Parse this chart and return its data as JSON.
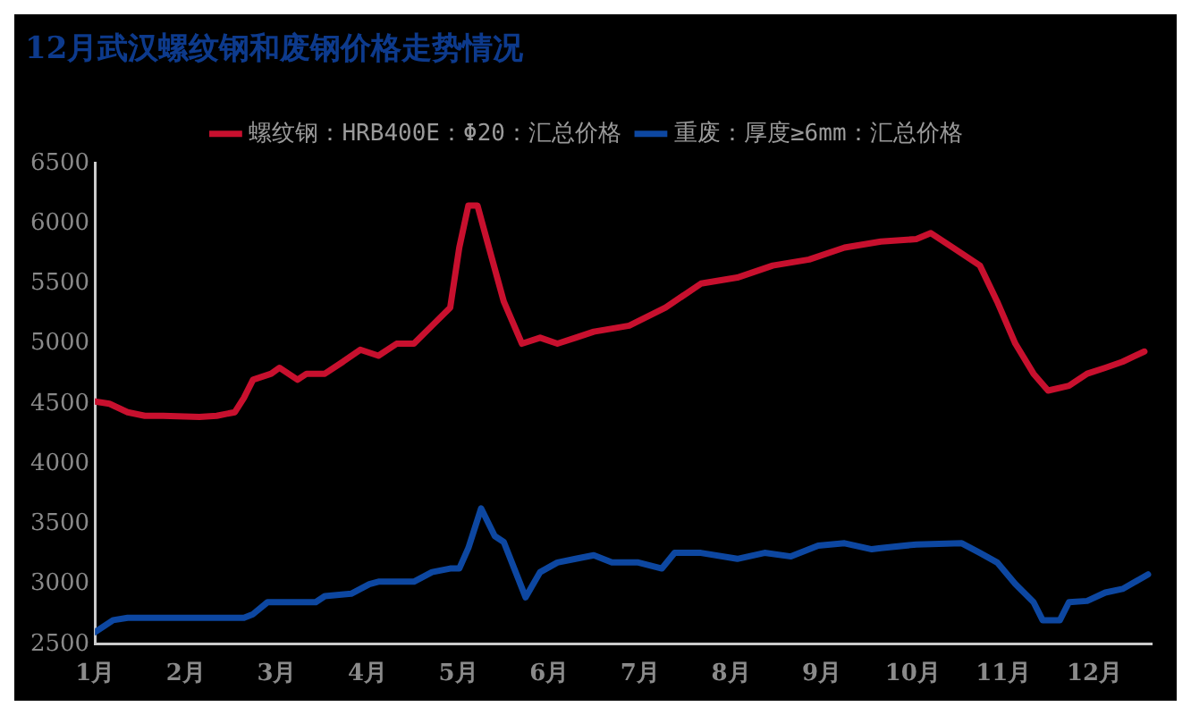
{
  "chart_data": {
    "type": "line",
    "title": "12月武汉螺纹钢和废钢价格走势情况",
    "legend": "top",
    "marker": "none",
    "line_style": "solid",
    "grid": false,
    "xlim": [
      1,
      12.63
    ],
    "xticks": [
      {
        "value": 1,
        "label": "1月"
      },
      {
        "value": 2,
        "label": "2月"
      },
      {
        "value": 3,
        "label": "3月"
      },
      {
        "value": 4,
        "label": "4月"
      },
      {
        "value": 5,
        "label": "5月"
      },
      {
        "value": 6,
        "label": "6月"
      },
      {
        "value": 7,
        "label": "7月"
      },
      {
        "value": 8,
        "label": "8月"
      },
      {
        "value": 9,
        "label": "9月"
      },
      {
        "value": 10,
        "label": "10月"
      },
      {
        "value": 11,
        "label": "11月"
      },
      {
        "value": 12,
        "label": "12月"
      }
    ],
    "ylim": [
      2500,
      6500
    ],
    "yticks": [
      2500,
      3000,
      3500,
      4000,
      4500,
      5000,
      5500,
      6000,
      6500
    ],
    "series": [
      {
        "name": "螺纹钢：HRB400E：Φ20：汇总价格",
        "color": "#c8102e",
        "x": [
          1,
          1.16,
          1.36,
          1.55,
          1.75,
          2.15,
          2.34,
          2.54,
          2.64,
          2.74,
          2.94,
          3.03,
          3.23,
          3.33,
          3.53,
          3.73,
          3.92,
          4.12,
          4.32,
          4.51,
          4.71,
          4.91,
          5.01,
          5.11,
          5.21,
          5.3,
          5.5,
          5.7,
          5.9,
          6.09,
          6.29,
          6.49,
          6.88,
          7.28,
          7.67,
          8.07,
          8.46,
          8.86,
          9.25,
          9.65,
          10.04,
          10.2,
          10.44,
          10.74,
          10.93,
          11.13,
          11.33,
          11.49,
          11.72,
          11.92,
          12.12,
          12.31,
          12.55
        ],
        "values": [
          4520,
          4500,
          4430,
          4400,
          4400,
          4390,
          4400,
          4430,
          4550,
          4700,
          4750,
          4800,
          4700,
          4750,
          4750,
          4850,
          4950,
          4900,
          5000,
          5000,
          5150,
          5300,
          5800,
          6150,
          6150,
          5900,
          5350,
          5000,
          5050,
          5000,
          5050,
          5100,
          5150,
          5300,
          5500,
          5550,
          5650,
          5700,
          5800,
          5850,
          5870,
          5920,
          5800,
          5650,
          5350,
          5000,
          4750,
          4610,
          4650,
          4750,
          4800,
          4850,
          4935
        ]
      },
      {
        "name": "重废：厚度≥6mm：汇总价格",
        "color": "#0d47a1",
        "x": [
          1,
          1.2,
          1.36,
          2.54,
          2.64,
          2.74,
          2.9,
          3.13,
          3.43,
          3.53,
          3.82,
          4.02,
          4.12,
          4.51,
          4.71,
          4.91,
          5.01,
          5.11,
          5.25,
          5.4,
          5.5,
          5.74,
          5.9,
          6.09,
          6.29,
          6.49,
          6.69,
          6.98,
          7.24,
          7.38,
          7.67,
          8.07,
          8.37,
          8.66,
          8.96,
          9.25,
          9.55,
          9.65,
          10.04,
          10.54,
          10.74,
          10.93,
          11.13,
          11.33,
          11.43,
          11.62,
          11.72,
          11.92,
          12.12,
          12.31,
          12.59
        ],
        "values": [
          2600,
          2700,
          2720,
          2720,
          2720,
          2750,
          2850,
          2850,
          2850,
          2900,
          2920,
          3000,
          3020,
          3020,
          3100,
          3130,
          3130,
          3300,
          3630,
          3400,
          3350,
          2890,
          3100,
          3180,
          3210,
          3240,
          3180,
          3180,
          3130,
          3260,
          3260,
          3210,
          3260,
          3230,
          3320,
          3340,
          3290,
          3300,
          3330,
          3340,
          3260,
          3180,
          3000,
          2850,
          2700,
          2700,
          2850,
          2860,
          2930,
          2960,
          3080
        ]
      }
    ]
  }
}
